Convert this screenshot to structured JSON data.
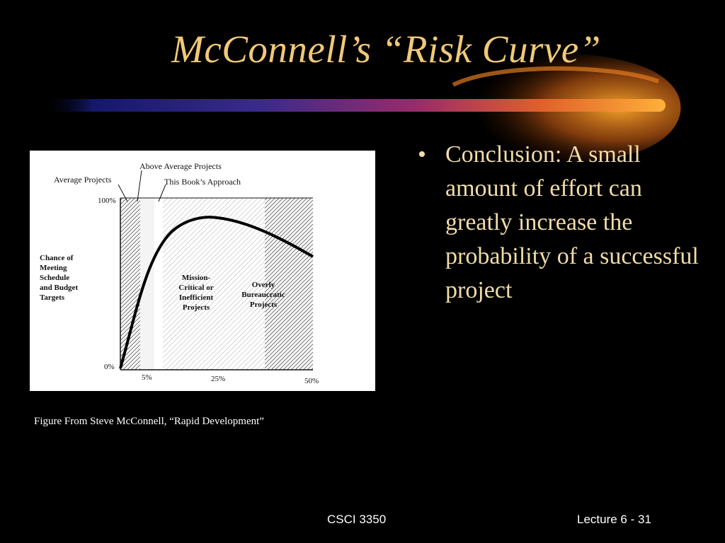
{
  "slide": {
    "title": "McConnell’s “Risk Curve”",
    "bullet_marker": "•",
    "bullets": [
      {
        "text": "Conclusion: A small amount of effort can greatly increase the probability of a successful project"
      }
    ],
    "caption": "Figure From  Steve McConnell, “Rapid Development”",
    "footer_center": "CSCI 3350",
    "footer_right": "Lecture 6 - 31"
  },
  "figure": {
    "labels": {
      "above_average": "Above Average Projects",
      "average": "Average Projects",
      "this_book": "This Book’s Approach",
      "y_axis": [
        "Chance of",
        "Meeting",
        "Schedule",
        "and Budget",
        "Targets"
      ],
      "y_top": "100%",
      "y_bottom": "0%",
      "x_ticks": [
        "5%",
        "25%",
        "50%"
      ],
      "region_mission": [
        "Mission-",
        "Critical or",
        "Inefficient",
        "Projects"
      ],
      "region_bureaucratic": [
        "Overly",
        "Bureaucratic",
        "Projects"
      ]
    }
  },
  "colors": {
    "background": "#000000",
    "title": "#f0c87a",
    "bullet_text": "#f0dca8",
    "accent_orange": "#ff9a1a",
    "accent_blue": "#2b2f8c"
  }
}
